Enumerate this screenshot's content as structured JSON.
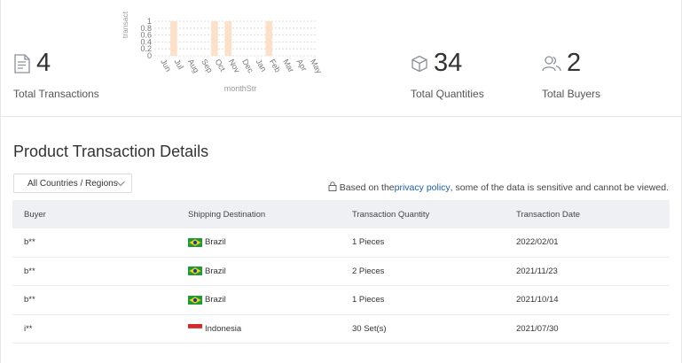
{
  "stats": {
    "transactions": {
      "value": "4",
      "label": "Total Transactions",
      "icon": "document-icon"
    },
    "quantities": {
      "value": "34",
      "label": "Total Quantities",
      "icon": "box-icon"
    },
    "buyers": {
      "value": "2",
      "label": "Total Buyers",
      "icon": "users-icon"
    }
  },
  "chart_data": {
    "type": "bar",
    "categories": [
      "Jun",
      "Jul",
      "Aug",
      "Sep",
      "Oct",
      "Nov",
      "Dec",
      "Jan",
      "Feb",
      "Mar",
      "Apr",
      "May"
    ],
    "values": [
      0,
      1,
      0,
      0,
      1,
      1,
      0,
      0,
      1,
      0,
      0,
      0
    ],
    "yticks": [
      "0",
      "0.2",
      "0.4",
      "0.6",
      "0.8",
      "1"
    ],
    "ylim": [
      0,
      1
    ],
    "xlabel": "monthStr",
    "ylabel": "transact",
    "grid": true,
    "bar_color": "#fde0c8"
  },
  "section_title": "Product Transaction Details",
  "filter": {
    "label": "All Countries / Regions"
  },
  "notice": {
    "before": "Based on the ",
    "link": "privacy policy",
    "after": ", some of the data is sensitive and cannot be viewed."
  },
  "table": {
    "headers": [
      "Buyer",
      "Shipping Destination",
      "Transaction Quantity",
      "Transaction Date"
    ],
    "rows": [
      {
        "buyer": "b**",
        "flag": "brazil",
        "destination": "Brazil",
        "quantity": "1 Pieces",
        "date": "2022/02/01"
      },
      {
        "buyer": "b**",
        "flag": "brazil",
        "destination": "Brazil",
        "quantity": "2 Pieces",
        "date": "2021/11/23"
      },
      {
        "buyer": "b**",
        "flag": "brazil",
        "destination": "Brazil",
        "quantity": "1 Pieces",
        "date": "2021/10/14"
      },
      {
        "buyer": "i**",
        "flag": "indonesia",
        "destination": "Indonesia",
        "quantity": "30 Set(s)",
        "date": "2021/07/30"
      }
    ]
  },
  "colors": {
    "link": "#1a5fb4",
    "header_bg": "#eef0f4"
  }
}
